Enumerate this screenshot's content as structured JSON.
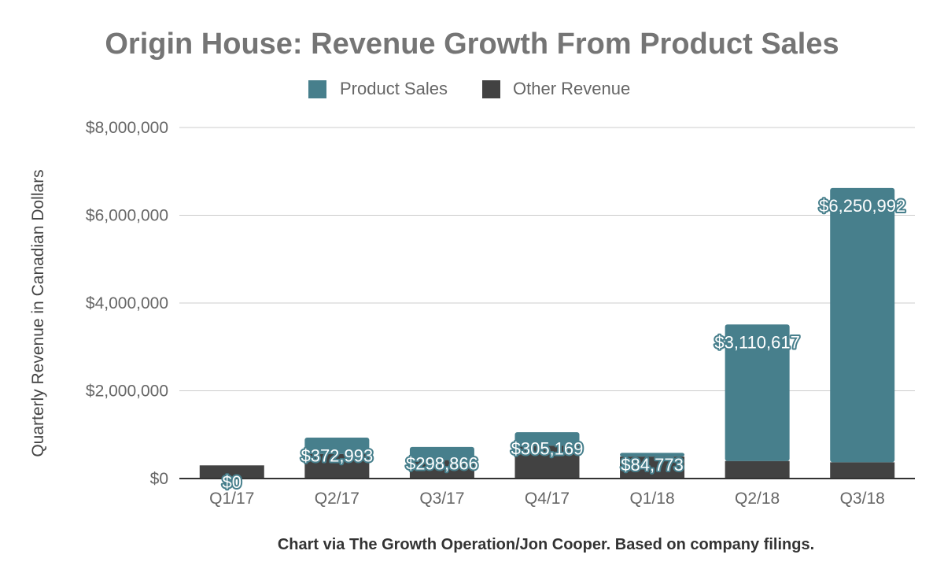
{
  "chart_data": {
    "type": "bar",
    "stacked": true,
    "title": "Origin House: Revenue Growth From Product Sales",
    "ylabel": "Quarterly Revenue in Canadian Dollars",
    "xlabel": "",
    "footer": "Chart via The Growth Operation/Jon Cooper. Based on company filings.",
    "categories": [
      "Q1/17",
      "Q2/17",
      "Q3/17",
      "Q4/17",
      "Q1/18",
      "Q2/18",
      "Q3/18"
    ],
    "series": [
      {
        "name": "Other Revenue",
        "color": "#424242",
        "values": [
          300000,
          560000,
          420000,
          750000,
          500000,
          400000,
          370000
        ]
      },
      {
        "name": "Product Sales",
        "color": "#477f8c",
        "values": [
          0,
          372993,
          298866,
          305169,
          84773,
          3110617,
          6250992
        ]
      }
    ],
    "data_labels": [
      "$0",
      "$372,993",
      "$298,866",
      "$305,169",
      "$84,773",
      "$3,110,617",
      "$6,250,992"
    ],
    "legend": [
      {
        "name": "Product Sales",
        "color": "#477f8c"
      },
      {
        "name": "Other Revenue",
        "color": "#424242"
      }
    ],
    "legend_position": "top",
    "ylim": [
      0,
      8000000
    ],
    "yticks": [
      0,
      2000000,
      4000000,
      6000000,
      8000000
    ],
    "ytick_labels": [
      "$0",
      "$2,000,000",
      "$4,000,000",
      "$6,000,000",
      "$8,000,000"
    ],
    "grid": true
  }
}
